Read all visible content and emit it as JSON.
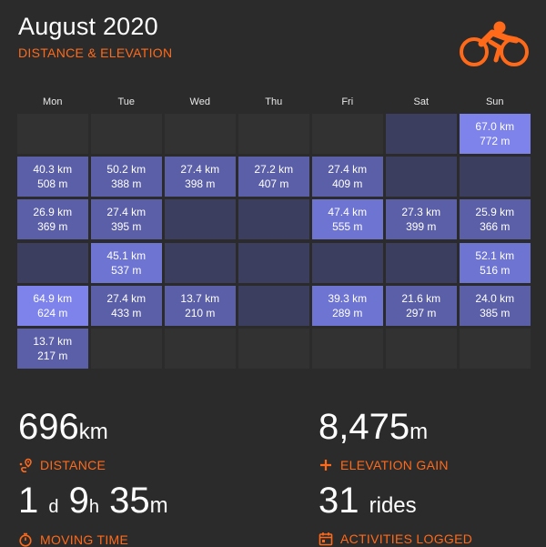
{
  "header": {
    "title": "August 2020",
    "subtitle": "DISTANCE & ELEVATION",
    "logo_icon": "cyclist-icon",
    "accent_color": "#ff6a1a"
  },
  "weekdays": [
    "Mon",
    "Tue",
    "Wed",
    "Thu",
    "Fri",
    "Sat",
    "Sun"
  ],
  "calendar": {
    "weeks": [
      [
        {
          "status": "outside"
        },
        {
          "status": "outside"
        },
        {
          "status": "outside"
        },
        {
          "status": "outside"
        },
        {
          "status": "outside"
        },
        {
          "status": "rest"
        },
        {
          "status": "ride",
          "distance": "67.0 km",
          "elevation": "772 m",
          "level": 3
        }
      ],
      [
        {
          "status": "ride",
          "distance": "40.3 km",
          "elevation": "508 m",
          "level": 1
        },
        {
          "status": "ride",
          "distance": "50.2 km",
          "elevation": "388 m",
          "level": 1
        },
        {
          "status": "ride",
          "distance": "27.4 km",
          "elevation": "398 m",
          "level": 1
        },
        {
          "status": "ride",
          "distance": "27.2 km",
          "elevation": "407 m",
          "level": 1
        },
        {
          "status": "ride",
          "distance": "27.4 km",
          "elevation": "409 m",
          "level": 1
        },
        {
          "status": "rest"
        },
        {
          "status": "rest"
        }
      ],
      [
        {
          "status": "ride",
          "distance": "26.9 km",
          "elevation": "369 m",
          "level": 1
        },
        {
          "status": "ride",
          "distance": "27.4 km",
          "elevation": "395 m",
          "level": 1
        },
        {
          "status": "rest"
        },
        {
          "status": "rest"
        },
        {
          "status": "ride",
          "distance": "47.4 km",
          "elevation": "555 m",
          "level": 2
        },
        {
          "status": "ride",
          "distance": "27.3 km",
          "elevation": "399 m",
          "level": 1
        },
        {
          "status": "ride",
          "distance": "25.9 km",
          "elevation": "366 m",
          "level": 1
        }
      ],
      [
        {
          "status": "rest"
        },
        {
          "status": "ride",
          "distance": "45.1 km",
          "elevation": "537 m",
          "level": 2
        },
        {
          "status": "rest"
        },
        {
          "status": "rest"
        },
        {
          "status": "rest"
        },
        {
          "status": "rest"
        },
        {
          "status": "ride",
          "distance": "52.1 km",
          "elevation": "516 m",
          "level": 2
        }
      ],
      [
        {
          "status": "ride",
          "distance": "64.9 km",
          "elevation": "624 m",
          "level": 3
        },
        {
          "status": "ride",
          "distance": "27.4 km",
          "elevation": "433 m",
          "level": 1
        },
        {
          "status": "ride",
          "distance": "13.7 km",
          "elevation": "210 m",
          "level": 1
        },
        {
          "status": "rest"
        },
        {
          "status": "ride",
          "distance": "39.3 km",
          "elevation": "289 m",
          "level": 2
        },
        {
          "status": "ride",
          "distance": "21.6 km",
          "elevation": "297 m",
          "level": 1
        },
        {
          "status": "ride",
          "distance": "24.0 km",
          "elevation": "385 m",
          "level": 1
        }
      ],
      [
        {
          "status": "ride",
          "distance": "13.7 km",
          "elevation": "217 m",
          "level": 1
        },
        {
          "status": "outside"
        },
        {
          "status": "outside"
        },
        {
          "status": "outside"
        },
        {
          "status": "outside"
        },
        {
          "status": "outside"
        },
        {
          "status": "outside"
        }
      ]
    ]
  },
  "stats": {
    "distance": {
      "value": "696",
      "unit": "km",
      "label": "DISTANCE",
      "icon": "route-pin-icon"
    },
    "elevation": {
      "value": "8,475",
      "unit": "m",
      "label": "ELEVATION GAIN",
      "icon": "plus-icon"
    },
    "moving_time": {
      "days": "1",
      "days_unit": "d",
      "hours": "9",
      "hours_unit": "h",
      "minutes": "35",
      "minutes_unit": "m",
      "label": "MOVING TIME",
      "icon": "stopwatch-icon"
    },
    "activities": {
      "value": "31",
      "unit": "rides",
      "label": "ACTIVITIES LOGGED",
      "icon": "calendar-icon"
    }
  }
}
